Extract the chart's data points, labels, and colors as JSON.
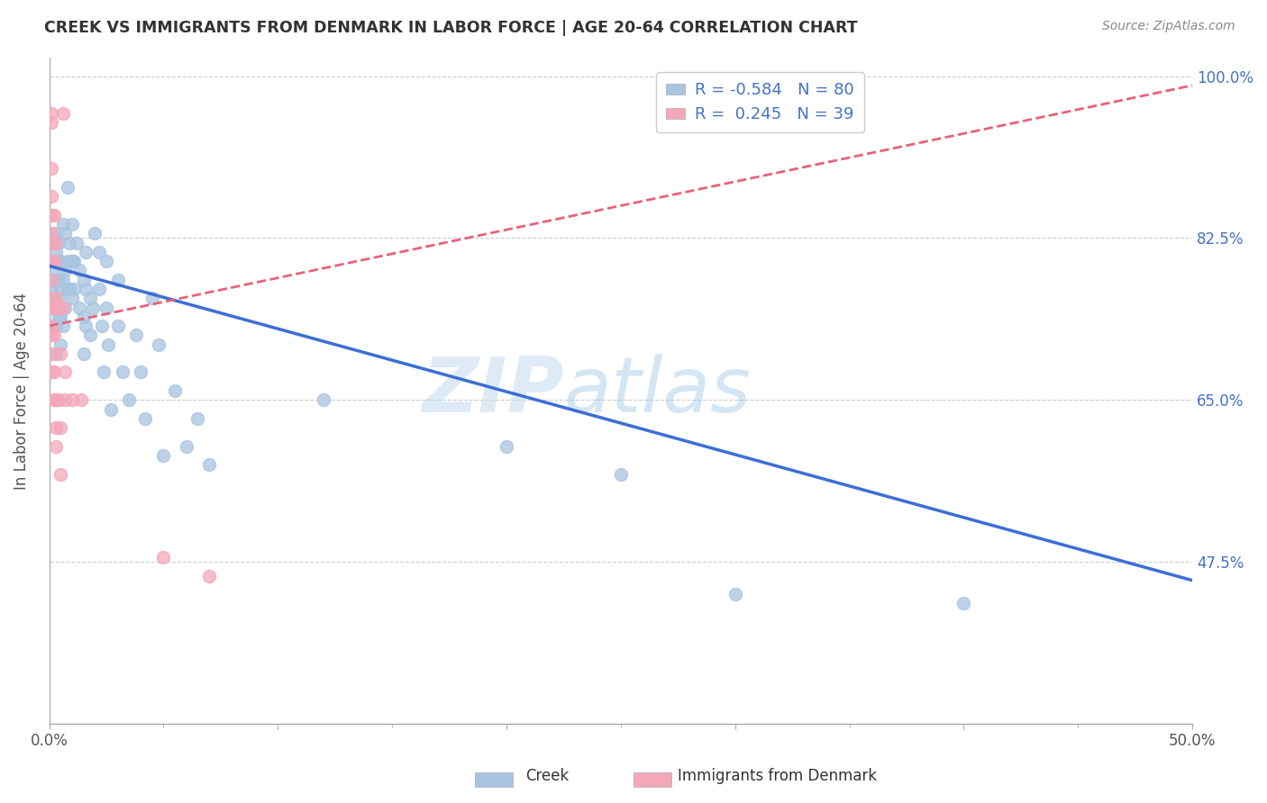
{
  "title": "CREEK VS IMMIGRANTS FROM DENMARK IN LABOR FORCE | AGE 20-64 CORRELATION CHART",
  "source": "Source: ZipAtlas.com",
  "ylabel": "In Labor Force | Age 20-64",
  "xlabel_creek": "Creek",
  "xlabel_denmark": "Immigrants from Denmark",
  "xlim": [
    0.0,
    0.5
  ],
  "ylim": [
    0.3,
    1.02
  ],
  "xticks": [
    0.0,
    0.1,
    0.2,
    0.3,
    0.4,
    0.5
  ],
  "xticklabels": [
    "0.0%",
    "",
    "",
    "",
    "",
    "50.0%"
  ],
  "yticks": [
    0.475,
    0.65,
    0.825,
    1.0
  ],
  "yticklabels": [
    "47.5%",
    "65.0%",
    "82.5%",
    "100.0%"
  ],
  "creek_color": "#a8c4e0",
  "denmark_color": "#f4a7b9",
  "creek_line_color": "#3b6fd4",
  "denmark_line_color": "#e8627a",
  "legend_R_creek": "-0.584",
  "legend_N_creek": "80",
  "legend_R_denmark": "0.245",
  "legend_N_denmark": "39",
  "watermark_zip": "ZIP",
  "watermark_atlas": "atlas",
  "creek_points": [
    [
      0.001,
      0.76
    ],
    [
      0.001,
      0.73
    ],
    [
      0.001,
      0.79
    ],
    [
      0.001,
      0.77
    ],
    [
      0.002,
      0.82
    ],
    [
      0.002,
      0.8
    ],
    [
      0.002,
      0.78
    ],
    [
      0.002,
      0.75
    ],
    [
      0.002,
      0.76
    ],
    [
      0.003,
      0.83
    ],
    [
      0.003,
      0.81
    ],
    [
      0.003,
      0.78
    ],
    [
      0.003,
      0.75
    ],
    [
      0.003,
      0.73
    ],
    [
      0.003,
      0.7
    ],
    [
      0.004,
      0.82
    ],
    [
      0.004,
      0.8
    ],
    [
      0.004,
      0.78
    ],
    [
      0.004,
      0.76
    ],
    [
      0.004,
      0.74
    ],
    [
      0.005,
      0.8
    ],
    [
      0.005,
      0.77
    ],
    [
      0.005,
      0.74
    ],
    [
      0.005,
      0.71
    ],
    [
      0.006,
      0.84
    ],
    [
      0.006,
      0.78
    ],
    [
      0.006,
      0.73
    ],
    [
      0.007,
      0.83
    ],
    [
      0.007,
      0.79
    ],
    [
      0.007,
      0.75
    ],
    [
      0.008,
      0.88
    ],
    [
      0.008,
      0.8
    ],
    [
      0.008,
      0.77
    ],
    [
      0.009,
      0.82
    ],
    [
      0.009,
      0.77
    ],
    [
      0.01,
      0.84
    ],
    [
      0.01,
      0.8
    ],
    [
      0.01,
      0.76
    ],
    [
      0.011,
      0.8
    ],
    [
      0.011,
      0.77
    ],
    [
      0.012,
      0.82
    ],
    [
      0.013,
      0.79
    ],
    [
      0.013,
      0.75
    ],
    [
      0.015,
      0.78
    ],
    [
      0.015,
      0.74
    ],
    [
      0.015,
      0.7
    ],
    [
      0.016,
      0.81
    ],
    [
      0.016,
      0.77
    ],
    [
      0.016,
      0.73
    ],
    [
      0.018,
      0.76
    ],
    [
      0.018,
      0.72
    ],
    [
      0.019,
      0.75
    ],
    [
      0.02,
      0.83
    ],
    [
      0.022,
      0.81
    ],
    [
      0.022,
      0.77
    ],
    [
      0.023,
      0.73
    ],
    [
      0.024,
      0.68
    ],
    [
      0.025,
      0.8
    ],
    [
      0.025,
      0.75
    ],
    [
      0.026,
      0.71
    ],
    [
      0.027,
      0.64
    ],
    [
      0.03,
      0.78
    ],
    [
      0.03,
      0.73
    ],
    [
      0.032,
      0.68
    ],
    [
      0.035,
      0.65
    ],
    [
      0.038,
      0.72
    ],
    [
      0.04,
      0.68
    ],
    [
      0.042,
      0.63
    ],
    [
      0.045,
      0.76
    ],
    [
      0.048,
      0.71
    ],
    [
      0.05,
      0.59
    ],
    [
      0.055,
      0.66
    ],
    [
      0.06,
      0.6
    ],
    [
      0.065,
      0.63
    ],
    [
      0.07,
      0.58
    ],
    [
      0.12,
      0.65
    ],
    [
      0.2,
      0.6
    ],
    [
      0.25,
      0.57
    ],
    [
      0.3,
      0.44
    ],
    [
      0.4,
      0.43
    ]
  ],
  "denmark_points": [
    [
      0.001,
      0.96
    ],
    [
      0.001,
      0.95
    ],
    [
      0.001,
      0.9
    ],
    [
      0.001,
      0.87
    ],
    [
      0.001,
      0.85
    ],
    [
      0.001,
      0.83
    ],
    [
      0.001,
      0.82
    ],
    [
      0.001,
      0.8
    ],
    [
      0.001,
      0.78
    ],
    [
      0.001,
      0.76
    ],
    [
      0.001,
      0.75
    ],
    [
      0.001,
      0.73
    ],
    [
      0.001,
      0.72
    ],
    [
      0.001,
      0.7
    ],
    [
      0.001,
      0.68
    ],
    [
      0.002,
      0.85
    ],
    [
      0.002,
      0.8
    ],
    [
      0.002,
      0.75
    ],
    [
      0.002,
      0.72
    ],
    [
      0.002,
      0.68
    ],
    [
      0.002,
      0.65
    ],
    [
      0.003,
      0.82
    ],
    [
      0.003,
      0.76
    ],
    [
      0.003,
      0.65
    ],
    [
      0.003,
      0.62
    ],
    [
      0.003,
      0.6
    ],
    [
      0.004,
      0.75
    ],
    [
      0.004,
      0.65
    ],
    [
      0.005,
      0.7
    ],
    [
      0.005,
      0.62
    ],
    [
      0.005,
      0.57
    ],
    [
      0.006,
      0.96
    ],
    [
      0.006,
      0.75
    ],
    [
      0.007,
      0.68
    ],
    [
      0.007,
      0.65
    ],
    [
      0.01,
      0.65
    ],
    [
      0.014,
      0.65
    ],
    [
      0.05,
      0.48
    ],
    [
      0.07,
      0.46
    ]
  ],
  "creek_trend": [
    0.0,
    0.5
  ],
  "creek_trend_y": [
    0.795,
    0.455
  ],
  "denmark_trend": [
    0.0,
    0.5
  ],
  "denmark_trend_y": [
    0.73,
    0.99
  ]
}
